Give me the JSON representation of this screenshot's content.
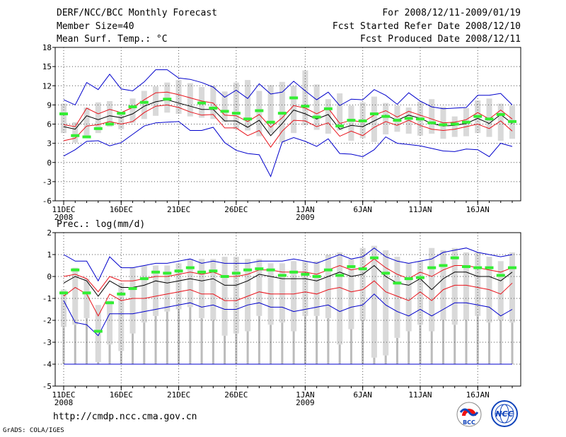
{
  "header": {
    "title": "DERF/NCC/BCC Monthly Forecast",
    "member_size": "Member Size=40",
    "period": "For 2008/12/11-2009/01/19",
    "started_refer_date": "Fcst Started Refer Date 2008/12/10",
    "produced_date": "Fcst Produced Date 2008/12/11"
  },
  "footer": {
    "url": "http://cmdp.ncc.cma.gov.cn",
    "credit": "GrADS: COLA/IGES",
    "logo_left_text": "BCC",
    "logo_right_text": "NCC"
  },
  "colors": {
    "box": "#d9d9d9",
    "median": "#000000",
    "inner_band": "#e8121a",
    "outer_band": "#0000cc",
    "observed": "#33ee33",
    "grid": "#555555"
  },
  "chart_data": [
    {
      "type": "box",
      "title": "Mean Surf. Temp.: °C",
      "xlabels": [
        {
          "day": 1,
          "label": "11DEC",
          "sub": "2008"
        },
        {
          "day": 6,
          "label": "16DEC"
        },
        {
          "day": 11,
          "label": "21DEC"
        },
        {
          "day": 16,
          "label": "26DEC"
        },
        {
          "day": 22,
          "label": "1JAN",
          "sub": "2009"
        },
        {
          "day": 27,
          "label": "6JAN"
        },
        {
          "day": 32,
          "label": "11JAN"
        },
        {
          "day": 37,
          "label": "16JAN"
        }
      ],
      "ylim": [
        -6,
        18
      ],
      "yticks": [
        -6,
        -3,
        0,
        3,
        6,
        9,
        12,
        15,
        18
      ],
      "days": 40,
      "box_low": [
        4.6,
        3.1,
        3.9,
        4.6,
        5.6,
        5.2,
        6.2,
        6.8,
        7.3,
        7.8,
        7.6,
        7.2,
        7.0,
        6.8,
        6.3,
        5.2,
        5.0,
        4.1,
        4.6,
        3.1,
        4.6,
        5.8,
        5.1,
        4.5,
        5.0,
        3.4,
        3.8,
        3.2,
        4.4,
        4.8,
        4.5,
        4.2,
        4.5,
        3.7,
        4.0,
        4.1,
        4.6,
        4.0,
        3.4,
        3.7
      ],
      "box_high": [
        9.2,
        6.3,
        8.6,
        9.4,
        9.6,
        7.7,
        10.0,
        11.2,
        11.9,
        12.5,
        12.9,
        12.4,
        11.8,
        12.0,
        11.1,
        12.5,
        12.9,
        11.2,
        12.1,
        12.6,
        12.0,
        14.4,
        12.2,
        9.9,
        10.8,
        8.9,
        9.4,
        10.3,
        9.3,
        8.9,
        8.6,
        9.5,
        9.9,
        8.7,
        7.2,
        8.5,
        9.7,
        10.0,
        9.2,
        8.9
      ],
      "median": [
        5.6,
        5.2,
        7.3,
        6.7,
        7.3,
        7.0,
        7.6,
        8.8,
        9.5,
        9.8,
        9.3,
        8.8,
        8.3,
        8.3,
        6.5,
        6.5,
        5.5,
        6.6,
        4.2,
        6.1,
        8.2,
        7.6,
        6.8,
        7.5,
        5.2,
        5.8,
        5.6,
        6.5,
        7.4,
        6.6,
        7.4,
        6.9,
        6.1,
        5.7,
        5.8,
        6.1,
        6.9,
        6.1,
        7.5,
        6.1
      ],
      "inner_high": [
        5.9,
        5.6,
        8.5,
        7.6,
        8.3,
        7.8,
        8.6,
        9.8,
        10.9,
        11.0,
        10.6,
        10.1,
        9.6,
        9.3,
        7.4,
        7.3,
        6.4,
        7.5,
        5.5,
        7.0,
        8.9,
        8.5,
        7.6,
        8.5,
        6.1,
        6.6,
        6.3,
        7.4,
        8.1,
        7.1,
        8.0,
        7.4,
        6.8,
        6.2,
        6.3,
        6.7,
        7.8,
        6.8,
        8.2,
        6.8
      ],
      "inner_low": [
        3.4,
        3.8,
        5.7,
        5.9,
        6.4,
        6.0,
        6.4,
        7.8,
        8.8,
        9.0,
        8.6,
        7.9,
        7.4,
        7.5,
        5.4,
        5.4,
        4.2,
        5.0,
        2.4,
        4.9,
        6.6,
        6.5,
        5.6,
        6.2,
        4.1,
        4.9,
        4.2,
        5.5,
        6.4,
        5.8,
        6.6,
        5.8,
        5.2,
        5.0,
        5.2,
        5.6,
        6.0,
        5.3,
        6.5,
        4.9
      ],
      "outer_high": [
        9.8,
        9.0,
        12.5,
        11.4,
        13.8,
        11.5,
        11.2,
        12.6,
        14.5,
        14.5,
        13.2,
        13.0,
        12.5,
        11.8,
        10.2,
        11.3,
        10.0,
        12.3,
        10.7,
        11.0,
        12.7,
        11.2,
        9.8,
        11.0,
        8.9,
        9.9,
        9.8,
        11.4,
        10.5,
        9.1,
        10.9,
        9.6,
        8.7,
        8.4,
        8.5,
        8.6,
        10.5,
        10.5,
        10.8,
        9.0
      ],
      "outer_low": [
        1.0,
        2.0,
        3.3,
        3.4,
        2.6,
        3.1,
        4.4,
        5.7,
        6.2,
        6.3,
        6.4,
        5.0,
        5.0,
        5.5,
        3.1,
        1.9,
        1.4,
        1.2,
        -2.2,
        3.2,
        3.9,
        3.3,
        2.5,
        3.7,
        1.4,
        1.3,
        0.9,
        2.0,
        4.0,
        3.0,
        2.8,
        2.6,
        2.2,
        1.8,
        1.7,
        2.1,
        2.0,
        0.9,
        3.0,
        2.5
      ],
      "observed": [
        7.6,
        4.2,
        4.0,
        5.3,
        6.0,
        7.7,
        8.7,
        9.4,
        null,
        9.9,
        null,
        null,
        9.3,
        8.5,
        8.0,
        7.7,
        6.8,
        8.1,
        6.3,
        7.7,
        10.1,
        8.8,
        7.1,
        8.4,
        5.7,
        6.6,
        6.5,
        7.6,
        7.2,
        6.6,
        6.9,
        6.8,
        6.2,
        5.9,
        6.0,
        6.3,
        7.2,
        6.8,
        7.5,
        6.4
      ]
    },
    {
      "type": "box",
      "title": "Prec.: log(mm/d)",
      "xlabels": [
        {
          "day": 1,
          "label": "11DEC",
          "sub": "2008"
        },
        {
          "day": 6,
          "label": "16DEC"
        },
        {
          "day": 11,
          "label": "21DEC"
        },
        {
          "day": 16,
          "label": "26DEC"
        },
        {
          "day": 22,
          "label": "1JAN",
          "sub": "2009"
        },
        {
          "day": 27,
          "label": "6JAN"
        },
        {
          "day": 32,
          "label": "11JAN"
        },
        {
          "day": 37,
          "label": "16JAN"
        }
      ],
      "ylim": [
        -5,
        2
      ],
      "yticks": [
        -5,
        -4,
        -3,
        -2,
        -1,
        0,
        1,
        2
      ],
      "days": 40,
      "floor": -4,
      "box_low": [
        -2.3,
        -2.2,
        -1.9,
        -3.9,
        -3.1,
        -3.4,
        -2.6,
        -2.1,
        -1.8,
        -1.6,
        -1.5,
        -1.4,
        -1.9,
        -2.0,
        -2.7,
        -2.6,
        -2.5,
        -1.8,
        -2.2,
        -2.1,
        -2.5,
        -1.8,
        -1.8,
        -1.9,
        -3.1,
        -2.4,
        -2.0,
        -3.7,
        -3.6,
        -2.8,
        -2.5,
        -2.2,
        -2.5,
        -2.0,
        -2.2,
        -2.0,
        -1.8,
        -2.1,
        -2.0,
        -2.1
      ],
      "box_high": [
        -0.6,
        0.4,
        -0.1,
        -1.3,
        -1.1,
        -0.3,
        0.4,
        0.5,
        0.5,
        0.5,
        0.6,
        0.8,
        0.8,
        0.8,
        0.9,
        0.9,
        0.8,
        0.8,
        0.6,
        0.6,
        0.7,
        0.7,
        0.7,
        1.0,
        1.1,
        0.8,
        1.3,
        1.4,
        1.2,
        0.9,
        0.6,
        0.7,
        1.3,
        1.2,
        1.3,
        1.1,
        1.1,
        0.9,
        0.7,
        1.1
      ],
      "median": [
        -0.3,
        0.0,
        -0.2,
        -0.9,
        -0.2,
        -0.5,
        -0.5,
        -0.4,
        -0.2,
        -0.3,
        -0.2,
        -0.1,
        -0.2,
        -0.1,
        -0.4,
        -0.4,
        -0.2,
        0.1,
        0.0,
        -0.1,
        -0.1,
        -0.1,
        -0.2,
        0.0,
        0.2,
        0.0,
        0.1,
        0.5,
        0.0,
        -0.3,
        -0.4,
        -0.1,
        -0.6,
        -0.1,
        0.2,
        0.2,
        0.0,
        0.0,
        -0.2,
        0.2
      ],
      "inner_high": [
        0.0,
        0.1,
        -0.1,
        -0.7,
        0.0,
        -0.2,
        -0.2,
        -0.1,
        0.0,
        0.0,
        0.1,
        0.2,
        0.1,
        0.2,
        0.0,
        0.0,
        0.1,
        0.3,
        0.3,
        0.2,
        0.2,
        0.2,
        0.1,
        0.3,
        0.5,
        0.3,
        0.4,
        0.8,
        0.4,
        0.1,
        -0.1,
        0.2,
        0.0,
        0.3,
        0.5,
        0.5,
        0.4,
        0.3,
        0.2,
        0.4
      ],
      "inner_low": [
        -0.9,
        -0.5,
        -0.8,
        -1.8,
        -0.8,
        -1.1,
        -1.0,
        -1.0,
        -0.9,
        -0.8,
        -0.7,
        -0.6,
        -0.8,
        -0.8,
        -1.1,
        -1.1,
        -0.9,
        -0.7,
        -0.8,
        -0.8,
        -0.8,
        -0.7,
        -0.8,
        -0.6,
        -0.5,
        -0.7,
        -0.6,
        -0.2,
        -0.7,
        -0.9,
        -1.1,
        -0.7,
        -1.1,
        -0.6,
        -0.4,
        -0.4,
        -0.5,
        -0.6,
        -0.8,
        -0.3
      ],
      "outer_high": [
        1.0,
        0.7,
        0.7,
        -0.2,
        0.9,
        0.4,
        0.4,
        0.5,
        0.6,
        0.6,
        0.7,
        0.8,
        0.6,
        0.7,
        0.6,
        0.6,
        0.6,
        0.7,
        0.7,
        0.7,
        0.8,
        0.7,
        0.6,
        0.8,
        1.0,
        0.8,
        0.9,
        1.3,
        0.9,
        0.7,
        0.6,
        0.7,
        0.8,
        1.1,
        1.2,
        1.3,
        1.1,
        1.0,
        0.9,
        1.0
      ],
      "outer_low": [
        -1.1,
        -2.1,
        -2.2,
        -2.7,
        -1.7,
        -1.7,
        -1.7,
        -1.6,
        -1.5,
        -1.4,
        -1.3,
        -1.2,
        -1.4,
        -1.3,
        -1.5,
        -1.5,
        -1.3,
        -1.2,
        -1.4,
        -1.4,
        -1.6,
        -1.5,
        -1.4,
        -1.3,
        -1.6,
        -1.4,
        -1.3,
        -0.8,
        -1.3,
        -1.6,
        -1.8,
        -1.5,
        -1.8,
        -1.5,
        -1.2,
        -1.2,
        -1.3,
        -1.4,
        -1.8,
        -1.5
      ],
      "observed": [
        -0.75,
        0.3,
        -0.75,
        -2.5,
        -1.2,
        -0.8,
        -0.55,
        -0.1,
        0.2,
        0.15,
        0.25,
        0.4,
        0.2,
        0.25,
        0.0,
        0.15,
        0.3,
        0.35,
        0.3,
        0.05,
        0.2,
        0.1,
        0.0,
        0.3,
        0.05,
        0.45,
        0.35,
        0.85,
        0.15,
        -0.3,
        -0.1,
        -0.05,
        0.4,
        0.5,
        0.85,
        0.45,
        0.4,
        0.4,
        0.05,
        0.4
      ]
    }
  ]
}
